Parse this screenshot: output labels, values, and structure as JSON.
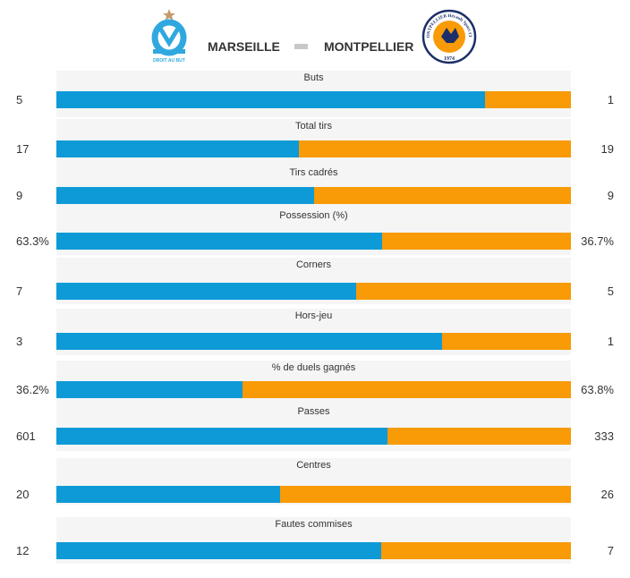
{
  "match": {
    "home_team": "MARSEILLE",
    "away_team": "MONTPELLIER",
    "home_logo_text": "DROIT AU BUT",
    "away_logo_text": "MONTPELLIER Hérault Sport Club",
    "away_logo_year": "1974"
  },
  "colors": {
    "home": "#0e9ad7",
    "away": "#f99a07"
  },
  "chart_data": {
    "type": "bar",
    "orientation": "horizontal-stacked-100",
    "series": [
      {
        "name": "MARSEILLE",
        "values": [
          5,
          17,
          9,
          63.3,
          7,
          3,
          36.2,
          601,
          20,
          12
        ]
      },
      {
        "name": "MONTPELLIER",
        "values": [
          1,
          19,
          9,
          36.7,
          5,
          1,
          63.8,
          333,
          26,
          7
        ]
      }
    ],
    "categories": [
      "Buts",
      "Total tirs",
      "Tirs cadrés",
      "Possession (%)",
      "Corners",
      "Hors-jeu",
      "% de duels gagnés",
      "Passes",
      "Centres",
      "Fautes commises"
    ],
    "stats": [
      {
        "label": "Buts",
        "home": "5",
        "away": "1",
        "home_share": 0.833
      },
      {
        "label": "Total tirs",
        "home": "17",
        "away": "19",
        "home_share": 0.472
      },
      {
        "label": "Tirs cadrés",
        "home": "9",
        "away": "9",
        "home_share": 0.5
      },
      {
        "label": "Possession (%)",
        "home": "63.3%",
        "away": "36.7%",
        "home_share": 0.633
      },
      {
        "label": "Corners",
        "home": "7",
        "away": "5",
        "home_share": 0.583
      },
      {
        "label": "Hors-jeu",
        "home": "3",
        "away": "1",
        "home_share": 0.75
      },
      {
        "label": "% de duels gagnés",
        "home": "36.2%",
        "away": "63.8%",
        "home_share": 0.362
      },
      {
        "label": "Passes",
        "home": "601",
        "away": "333",
        "home_share": 0.643
      },
      {
        "label": "Centres",
        "home": "20",
        "away": "26",
        "home_share": 0.435
      },
      {
        "label": "Fautes commises",
        "home": "12",
        "away": "7",
        "home_share": 0.632
      }
    ]
  }
}
